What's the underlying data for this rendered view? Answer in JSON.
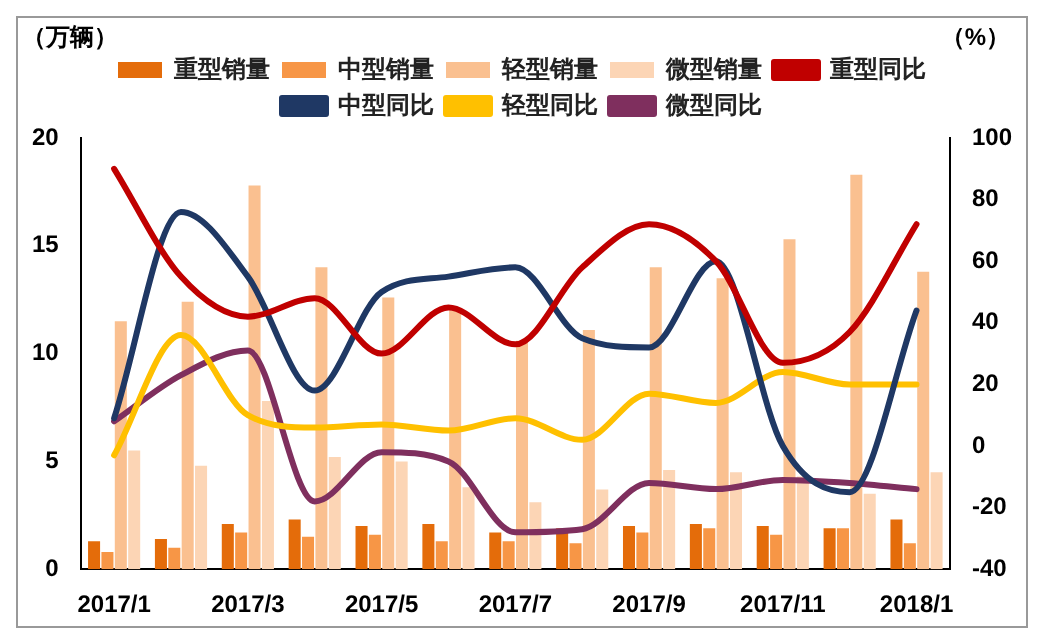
{
  "chart_data": {
    "type": "bar",
    "ylabel": "（万辆）",
    "y2label": "（%）",
    "categories": [
      "2017/1",
      null,
      "2017/3",
      null,
      "2017/5",
      null,
      "2017/7",
      null,
      "2017/9",
      null,
      "2017/11",
      null,
      "2018/1"
    ],
    "series": [
      {
        "name": "重型销量",
        "color": "#e46c0a",
        "values": [
          1.3,
          1.4,
          2.1,
          2.3,
          2.0,
          2.1,
          1.7,
          1.9,
          2.0,
          2.1,
          2.0,
          1.9,
          2.3
        ]
      },
      {
        "name": "中型销量",
        "color": "#f79646",
        "values": [
          0.8,
          1.0,
          1.7,
          1.5,
          1.6,
          1.3,
          1.3,
          1.2,
          1.7,
          1.9,
          1.6,
          1.9,
          1.2
        ]
      },
      {
        "name": "轻型销量",
        "color": "#fac090",
        "values": [
          11.5,
          12.4,
          17.8,
          14.0,
          12.6,
          12.0,
          10.6,
          11.1,
          14.0,
          13.5,
          15.3,
          18.3,
          13.8
        ]
      },
      {
        "name": "微型销量",
        "color": "#fcd5b5",
        "values": [
          5.5,
          4.8,
          7.8,
          5.2,
          5.0,
          3.8,
          3.1,
          3.7,
          4.6,
          4.5,
          4.3,
          3.5,
          4.5
        ]
      },
      {
        "name": "重型同比",
        "type": "line",
        "axis": "y2",
        "color": "#c00000",
        "values": [
          90,
          55,
          42,
          48,
          30,
          45,
          33,
          58,
          72,
          60,
          27,
          37,
          72
        ]
      },
      {
        "name": "中型同比",
        "type": "line",
        "axis": "y2",
        "color": "#1f3864",
        "values": [
          9,
          76,
          55,
          18,
          50,
          55,
          58,
          35,
          32,
          60,
          0,
          -15,
          44
        ]
      },
      {
        "name": "轻型同比",
        "type": "line",
        "axis": "y2",
        "color": "#ffc000",
        "values": [
          -3,
          36,
          10,
          6,
          7,
          5,
          9,
          2,
          17,
          14,
          24,
          20,
          20
        ]
      },
      {
        "name": "微型同比",
        "type": "line",
        "axis": "y2",
        "color": "#7f2f5e",
        "values": [
          8,
          23,
          31,
          -18,
          -2,
          -5,
          -28,
          -27,
          -12,
          -14,
          -11,
          -12,
          -14
        ]
      }
    ],
    "ylim": [
      0,
      20
    ],
    "yticks": [
      0,
      5,
      10,
      15,
      20
    ],
    "y2lim": [
      -40,
      100
    ],
    "y2ticks": [
      -40,
      -20,
      0,
      20,
      40,
      60,
      80,
      100
    ],
    "grid": false,
    "legend": "top",
    "marker": "none",
    "line_style": "solid"
  }
}
